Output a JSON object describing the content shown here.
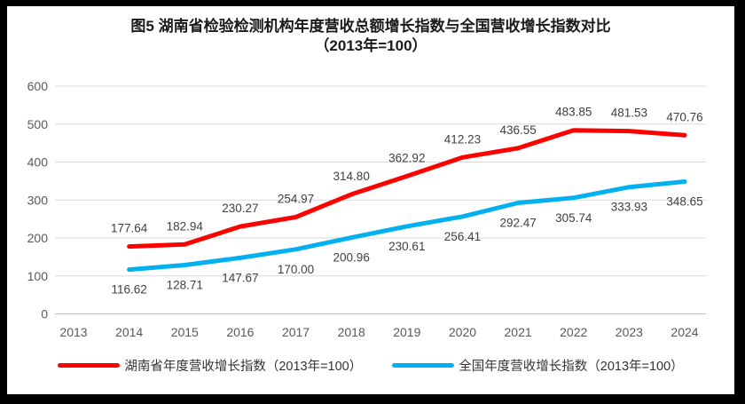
{
  "title": {
    "line1": "图5 湖南省检验检测机构年度营收总额增长指数与全国营收增长指数对比",
    "line2": "（2013年=100）"
  },
  "colors": {
    "hunan_line": "#ff0000",
    "national_line": "#00b0f0",
    "gridline": "#d9d9d9",
    "axis_line": "#bfbfbf",
    "tick_text": "#595959",
    "frame": "#000000",
    "background": "#ffffff"
  },
  "chart_data": {
    "type": "line",
    "title": "图5 湖南省检验检测机构年度营收总额增长指数与全国营收增长指数对比（2013年=100）",
    "x": [
      "2013",
      "2014",
      "2015",
      "2016",
      "2017",
      "2018",
      "2019",
      "2020",
      "2021",
      "2022",
      "2023",
      "2024"
    ],
    "series": [
      {
        "id": "hunan",
        "name": "湖南省年度营收增长指数（2013年=100）",
        "color": "#ff0000",
        "label_position": "above",
        "values": [
          null,
          177.64,
          182.94,
          230.27,
          254.97,
          314.8,
          362.92,
          412.23,
          436.55,
          483.85,
          481.53,
          470.76
        ]
      },
      {
        "id": "national",
        "name": "全国年度营收增长指数（2013年=100）",
        "color": "#00b0f0",
        "label_position": "below",
        "values": [
          null,
          116.62,
          128.71,
          147.67,
          170.0,
          200.96,
          230.61,
          256.41,
          292.47,
          305.74,
          333.93,
          348.65
        ]
      }
    ],
    "ylim": [
      0,
      600
    ],
    "yticks": [
      0,
      100,
      200,
      300,
      400,
      500,
      600
    ],
    "grid": true,
    "legend_position": "bottom",
    "data_labels_decimals": 2
  }
}
